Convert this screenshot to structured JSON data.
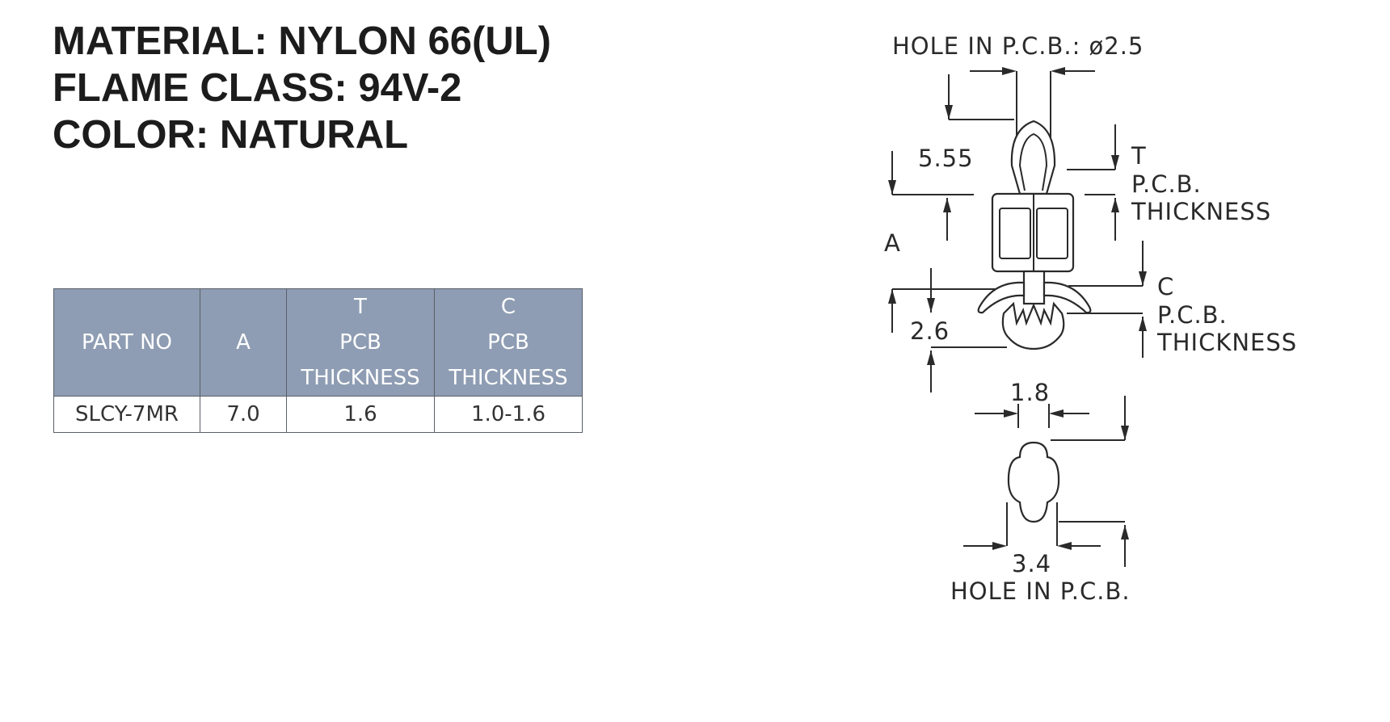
{
  "specs": {
    "material": "MATERIAL: NYLON 66(UL)",
    "flame_class": "FLAME CLASS: 94V-2",
    "color": "COLOR: NATURAL"
  },
  "table": {
    "headers": {
      "part_no": [
        "PART NO"
      ],
      "a": [
        "A"
      ],
      "t": [
        "T",
        "PCB",
        "THICKNESS"
      ],
      "c": [
        "C",
        "PCB",
        "THICKNESS"
      ]
    },
    "rows": [
      [
        "SLCY-7MR",
        "7.0",
        "1.6",
        "1.0-1.6"
      ]
    ],
    "header_color": "#8e9db3"
  },
  "drawing": {
    "hole_top": "HOLE IN P.C.B.: ø2.5",
    "dim_555": "5.55",
    "dim_a": "A",
    "dim_26": "2.6",
    "t_label": "T",
    "t_pcb": "P.C.B.",
    "t_thickness": "THICKNESS",
    "c_label": "C",
    "c_pcb": "P.C.B.",
    "c_thickness": "THICKNESS",
    "dim_18": "1.8",
    "dim_34": "3.4",
    "hole_bottom": "HOLE IN P.C.B."
  }
}
